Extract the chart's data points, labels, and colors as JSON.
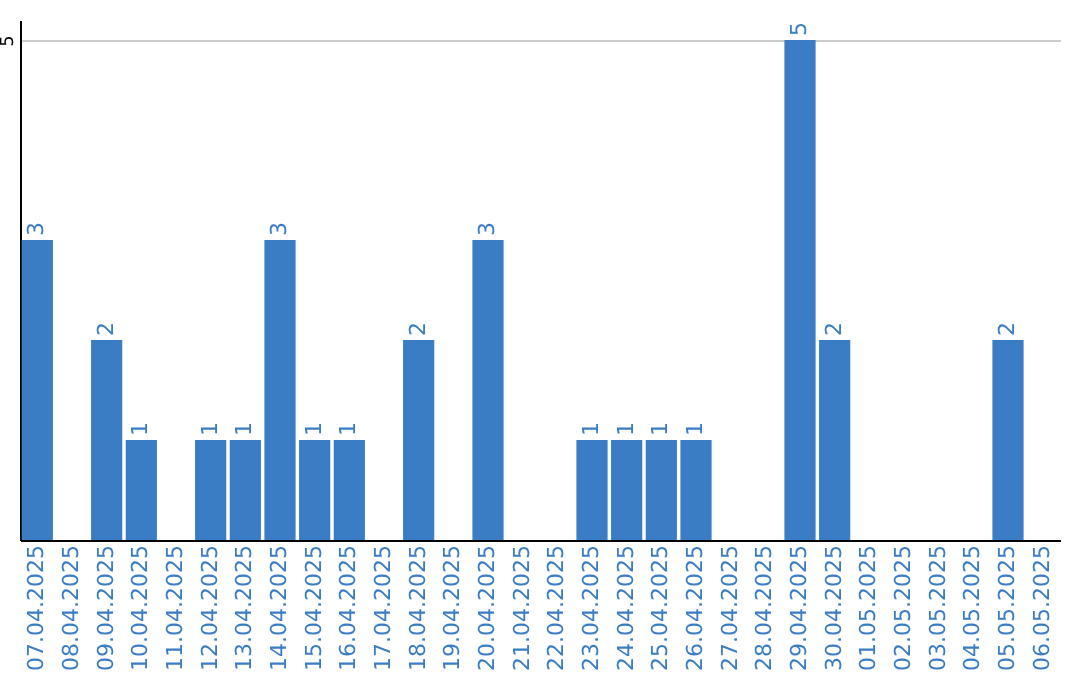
{
  "chart_data": {
    "type": "bar",
    "categories": [
      "07.04.2025",
      "08.04.2025",
      "09.04.2025",
      "10.04.2025",
      "11.04.2025",
      "12.04.2025",
      "13.04.2025",
      "14.04.2025",
      "15.04.2025",
      "16.04.2025",
      "17.04.2025",
      "18.04.2025",
      "19.04.2025",
      "20.04.2025",
      "21.04.2025",
      "22.04.2025",
      "23.04.2025",
      "24.04.2025",
      "25.04.2025",
      "26.04.2025",
      "27.04.2025",
      "28.04.2025",
      "29.04.2025",
      "30.04.2025",
      "01.05.2025",
      "02.05.2025",
      "03.05.2025",
      "04.05.2025",
      "05.05.2025",
      "06.05.2025"
    ],
    "values": [
      3,
      0,
      2,
      1,
      0,
      1,
      1,
      3,
      1,
      1,
      0,
      2,
      0,
      3,
      0,
      0,
      1,
      1,
      1,
      1,
      0,
      0,
      5,
      2,
      0,
      0,
      0,
      0,
      2,
      0
    ],
    "value_labels": [
      "3",
      null,
      "2",
      "1",
      null,
      "1",
      "1",
      "3",
      "1",
      "1",
      null,
      "2",
      null,
      "3",
      null,
      null,
      "1",
      "1",
      "1",
      "1",
      null,
      null,
      "5",
      "2",
      null,
      null,
      null,
      null,
      "2",
      null
    ],
    "color": "#3a7dc4",
    "ylim": [
      0,
      5.2
    ],
    "yticks": [
      5
    ],
    "grid": "y"
  }
}
